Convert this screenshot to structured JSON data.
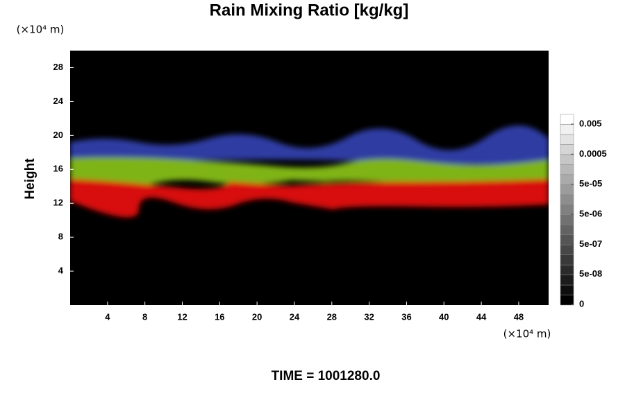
{
  "chart_data": {
    "type": "heatmap",
    "title": "Rain Mixing Ratio [kg/kg]",
    "x_unit": "(×10⁴ m)",
    "y_unit": "(×10⁴ m)",
    "y_label": "Height",
    "xlim": [
      0,
      51.2
    ],
    "xticks": [
      4,
      8,
      12,
      16,
      20,
      24,
      28,
      32,
      36,
      40,
      44,
      48
    ],
    "ylim": [
      0,
      30
    ],
    "yticks": [
      4,
      8,
      12,
      16,
      20,
      24,
      28
    ],
    "colorbar_ticks": [
      0,
      {
        "value": 5e-08,
        "label": "5e-08"
      },
      {
        "value": 5e-07,
        "label": "5e-07"
      },
      {
        "value": 5e-06,
        "label": "5e-06"
      },
      {
        "value": 5e-05,
        "label": "5e-05"
      },
      0.0005,
      0.005
    ],
    "footer": "TIME = 1001280.0"
  }
}
